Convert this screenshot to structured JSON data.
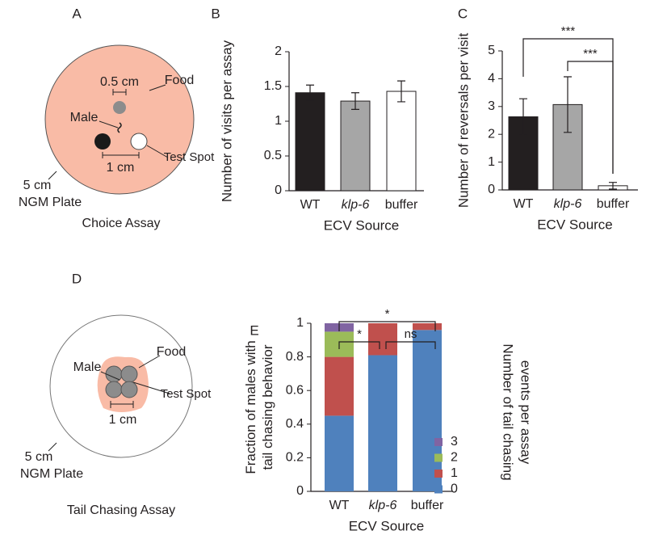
{
  "diagrams": [
    {
      "label": "A",
      "title": "Choice Assay",
      "annotations": [
        "0.5 cm",
        "Food",
        "Male",
        "Test Spot",
        "1 cm",
        "5 cm",
        "NGM Plate"
      ]
    },
    {
      "label": "D",
      "title": "Tail Chasing Assay",
      "annotations": [
        "Food",
        "Male",
        "Test Spot",
        "1 cm",
        "5 cm",
        "NGM Plate"
      ]
    }
  ],
  "chart_data": [
    {
      "type": "bar",
      "label": "B",
      "categories": [
        "WT",
        "klp-6",
        "buffer"
      ],
      "values": [
        1.41,
        1.29,
        1.43
      ],
      "errors": [
        0.11,
        0.12,
        0.15
      ],
      "colors": [
        "#231f20",
        "#a6a6a6",
        "#ffffff"
      ],
      "edgecolor": "#231f20",
      "ylim": [
        0,
        2
      ],
      "yticks": [
        0,
        0.5,
        1,
        1.5,
        2
      ],
      "ylabel": "Number of visits per assay",
      "xlabel": "ECV Source"
    },
    {
      "type": "bar",
      "label": "C",
      "categories": [
        "WT",
        "klp-6",
        "buffer"
      ],
      "values": [
        2.63,
        3.07,
        0.15
      ],
      "errors": [
        0.65,
        1.0,
        0.12
      ],
      "colors": [
        "#231f20",
        "#a6a6a6",
        "#ffffff"
      ],
      "edgecolor": "#231f20",
      "ylim": [
        0,
        5
      ],
      "yticks": [
        0,
        1,
        2,
        3,
        4,
        5
      ],
      "ylabel": "Number of reversals per visit",
      "xlabel": "ECV Source",
      "annotations": [
        {
          "text": "***",
          "between": [
            "WT",
            "buffer"
          ]
        },
        {
          "text": "***",
          "between": [
            "klp-6",
            "buffer"
          ]
        }
      ]
    },
    {
      "type": "stacked_bar",
      "label": "E",
      "categories": [
        "WT",
        "klp-6",
        "buffer"
      ],
      "series": [
        {
          "name": "0",
          "color": "#4f81bd",
          "values": [
            0.45,
            0.81,
            0.96
          ]
        },
        {
          "name": "1",
          "color": "#c0504d",
          "values": [
            0.35,
            0.19,
            0.04
          ]
        },
        {
          "name": "2",
          "color": "#9bbb59",
          "values": [
            0.15,
            0,
            0
          ]
        },
        {
          "name": "3",
          "color": "#8064a2",
          "values": [
            0.05,
            0,
            0
          ]
        }
      ],
      "ylim": [
        0,
        1
      ],
      "yticks": [
        0,
        0.2,
        0.4,
        0.6,
        0.8,
        1
      ],
      "ylabel": [
        "Fraction of males with",
        "tail chasing behavior"
      ],
      "xlabel": "ECV Source",
      "legend_title": [
        "Number of tail chasing",
        "events per assay"
      ],
      "annotations": [
        {
          "text": "*",
          "between": [
            "WT",
            "buffer"
          ]
        },
        {
          "text": "*",
          "between": [
            "WT",
            "klp-6"
          ]
        },
        {
          "text": "ns",
          "between": [
            "klp-6",
            "buffer"
          ]
        }
      ]
    }
  ]
}
